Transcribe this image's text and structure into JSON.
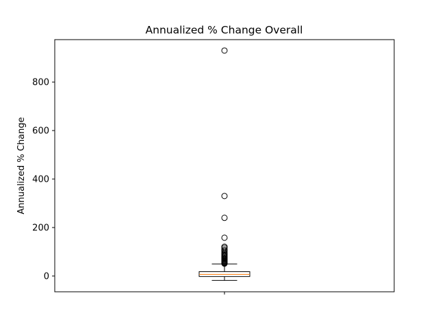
{
  "chart_data": {
    "type": "box",
    "title": "Annualized % Change Overall",
    "xlabel": "",
    "ylabel": "Annualized % Change",
    "ylim": [
      -65,
      975
    ],
    "yticks": [
      0,
      200,
      400,
      600,
      800
    ],
    "grid": false,
    "legend": "none",
    "categories": [
      ""
    ],
    "box": {
      "q1": -2,
      "median": 7,
      "q3": 18,
      "whisker_low": -18,
      "whisker_high": 50
    },
    "outliers": [
      930,
      330,
      240,
      158,
      121,
      116,
      109,
      104,
      98,
      93,
      89,
      85,
      81,
      77,
      73,
      70,
      67,
      64,
      61,
      58,
      55,
      53,
      51
    ],
    "colors": {
      "box_edge": "#000000",
      "median": "#ff7f0e",
      "outlier_edge": "#000000"
    }
  }
}
